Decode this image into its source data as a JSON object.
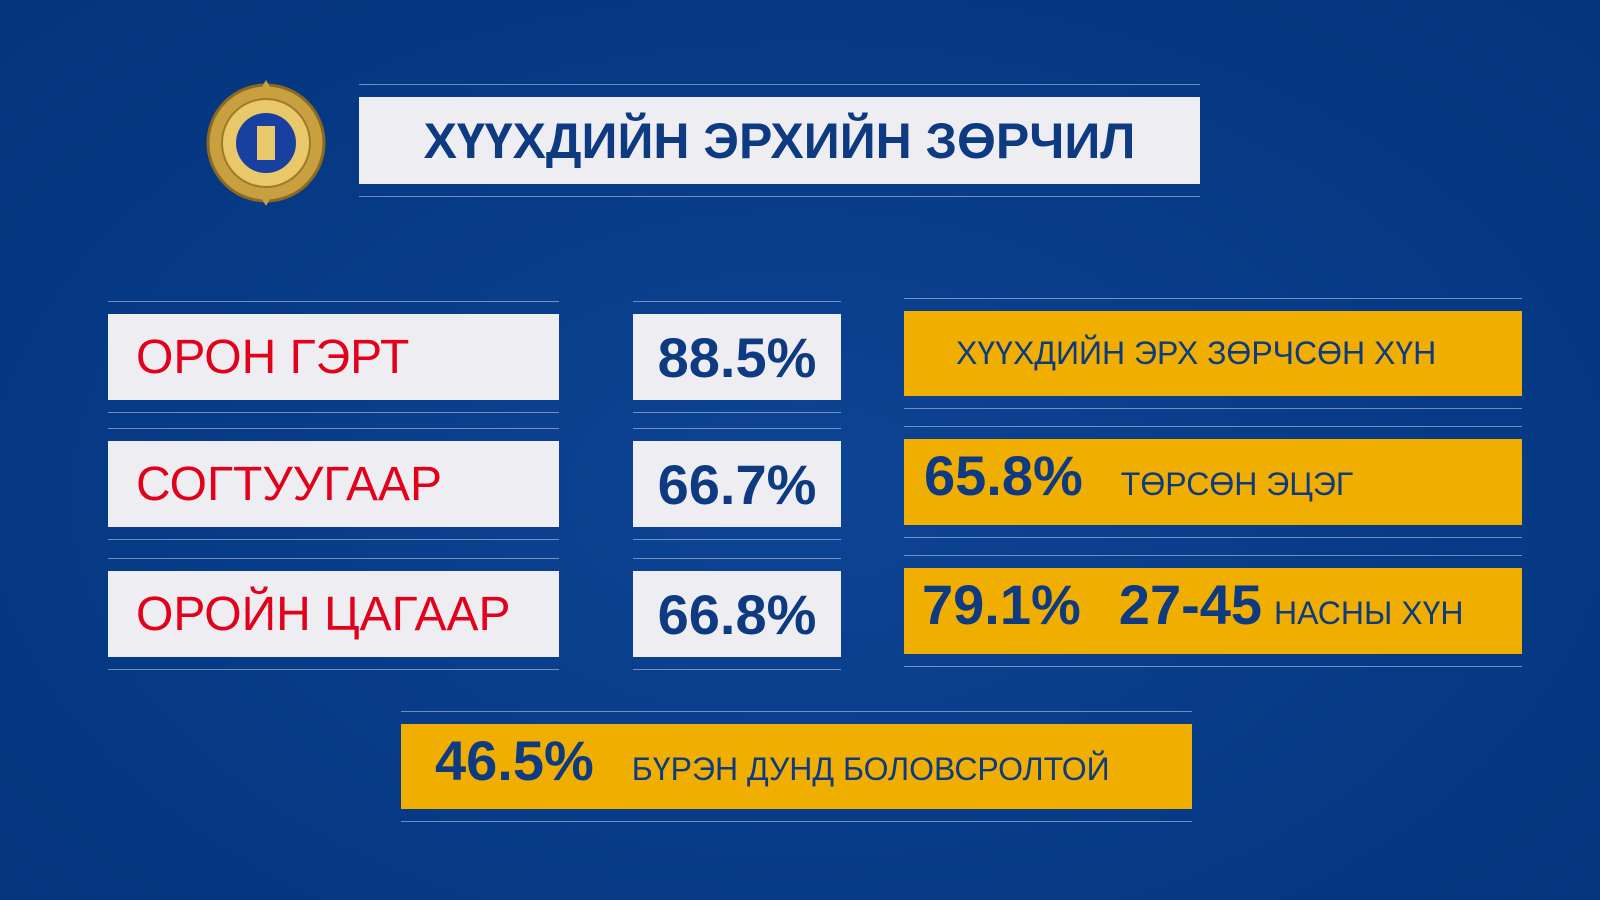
{
  "header": {
    "title": "ХҮҮХДИЙН ЭРХИЙН ЗӨРЧИЛ"
  },
  "rows": [
    {
      "label": "ОРОН ГЭРТ",
      "percent": "88.5%"
    },
    {
      "label": "СОГТУУГААР",
      "percent": "66.7%"
    },
    {
      "label": "ОРОЙН ЦАГААР",
      "percent": "66.8%"
    }
  ],
  "offender": {
    "heading": "ХҮҮХДИЙН ЭРХ ЗӨРЧСӨН ХҮН",
    "relation_percent": "65.8%",
    "relation": "ТӨРСӨН ЭЦЭГ",
    "age_percent": "79.1%",
    "age_range": "27-45",
    "age_text": "НАСНЫ ХҮН",
    "education_percent": "46.5%",
    "education": "БҮРЭН ДУНД БОЛОВСРОЛТОЙ"
  }
}
